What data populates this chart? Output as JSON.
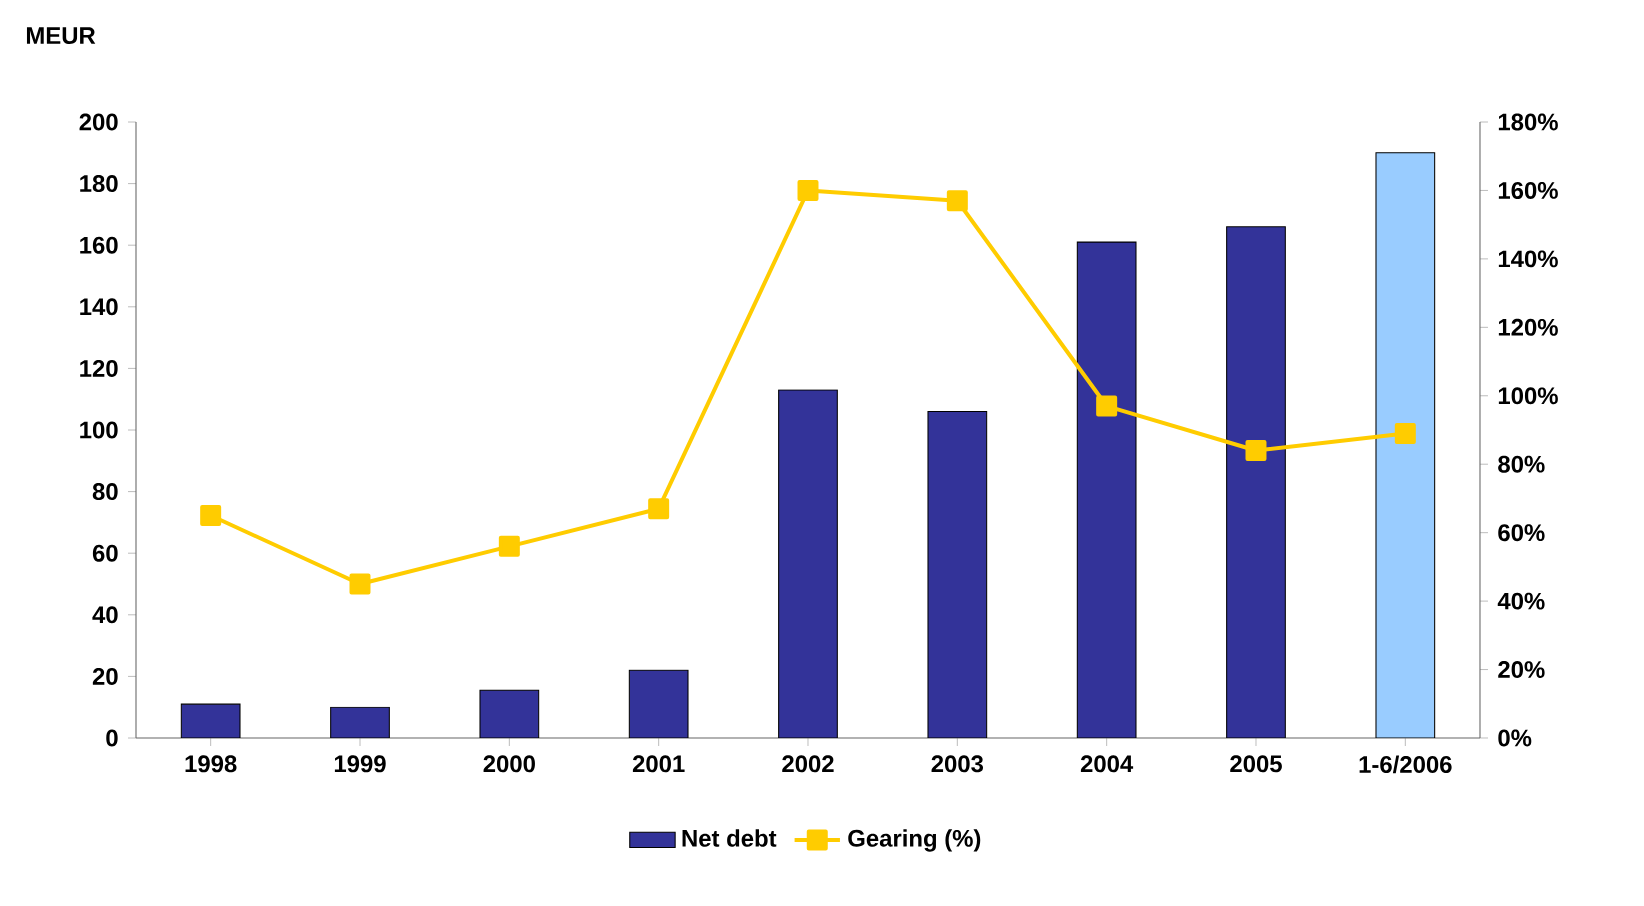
{
  "chart_data": {
    "type": "bar",
    "ylabel": "MEUR",
    "categories": [
      "1998",
      "1999",
      "2000",
      "2001",
      "2002",
      "2003",
      "2004",
      "2005",
      "1-6/2006"
    ],
    "series": [
      {
        "name": "Net debt",
        "colors": [
          "#333399",
          "#333399",
          "#333399",
          "#333399",
          "#333399",
          "#333399",
          "#333399",
          "#333399",
          "#99ccff"
        ],
        "values": [
          11,
          10,
          15.5,
          22,
          113,
          106,
          161,
          166,
          190
        ]
      },
      {
        "name": "Gearing (%)",
        "type": "line",
        "axis": "y2",
        "color": "#ffcc00",
        "values": [
          65,
          45,
          56,
          67,
          160,
          157,
          97,
          84,
          89
        ]
      }
    ],
    "ylim": [
      0,
      200
    ],
    "yticks": [
      0,
      20,
      40,
      60,
      80,
      100,
      120,
      140,
      160,
      180,
      200
    ],
    "y2lim": [
      0,
      180
    ],
    "y2ticks": [
      {
        "value": 0,
        "label": "0%"
      },
      {
        "value": 20,
        "label": "20%"
      },
      {
        "value": 40,
        "label": "40%"
      },
      {
        "value": 60,
        "label": "60%"
      },
      {
        "value": 80,
        "label": "80%"
      },
      {
        "value": 100,
        "label": "100%"
      },
      {
        "value": 120,
        "label": "120%"
      },
      {
        "value": 140,
        "label": "140%"
      },
      {
        "value": 160,
        "label": "160%"
      },
      {
        "value": 180,
        "label": "180%"
      }
    ],
    "legend": "bottom",
    "marker": "square",
    "grid": false
  }
}
